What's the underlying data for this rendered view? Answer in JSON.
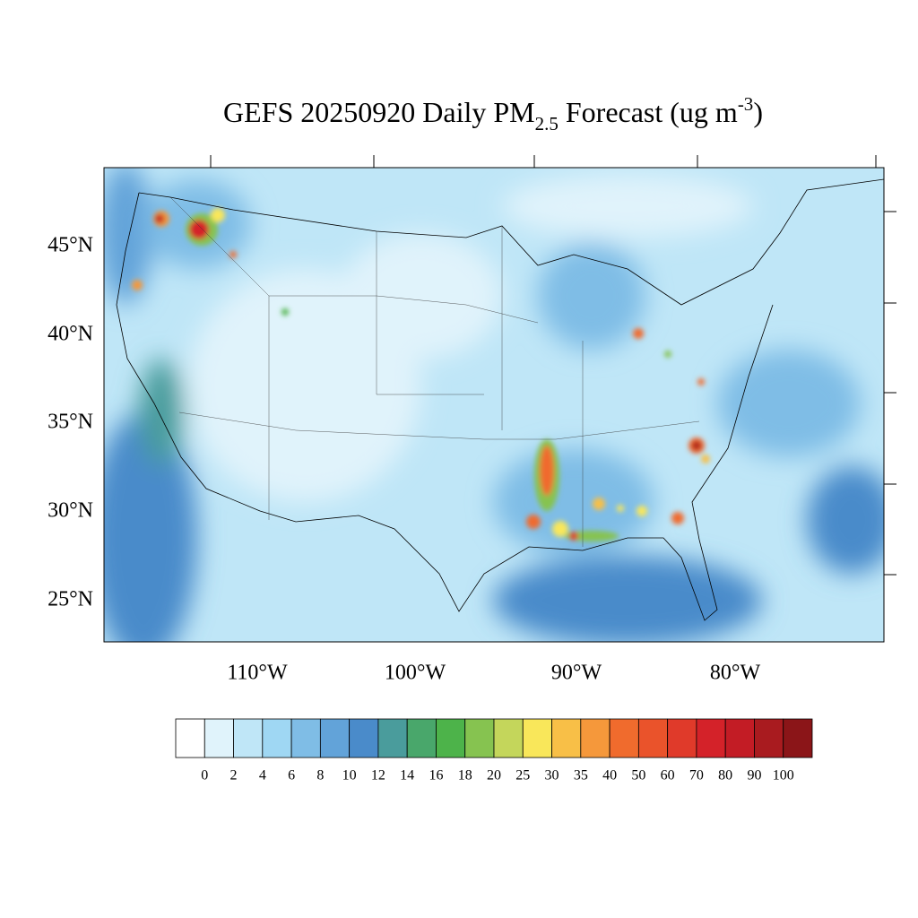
{
  "title": {
    "prefix": "GEFS 20250920 Daily PM",
    "subscript": "2.5",
    "middle": " Forecast (ug m",
    "superscript": "-3",
    "suffix": ")"
  },
  "lat_labels": [
    "45°N",
    "40°N",
    "35°N",
    "30°N",
    "25°N"
  ],
  "lon_labels": [
    "110°W",
    "100°W",
    "90°W",
    "80°W"
  ],
  "colorbar": {
    "levels": [
      0,
      2,
      4,
      6,
      8,
      10,
      12,
      14,
      16,
      18,
      20,
      25,
      30,
      35,
      40,
      50,
      60,
      70,
      80,
      90,
      100
    ],
    "colors": [
      "#ffffff",
      "#e0f3fb",
      "#bfe6f7",
      "#9fd7f3",
      "#7fbde6",
      "#62a3d9",
      "#4a8bca",
      "#4a9c9c",
      "#49a76b",
      "#4db34a",
      "#86c350",
      "#c4d65b",
      "#f9e75a",
      "#f8bf47",
      "#f5983b",
      "#f06b2d",
      "#ea532b",
      "#e03a2a",
      "#d42229",
      "#c31c25",
      "#a91b1f",
      "#8b1518"
    ]
  }
}
